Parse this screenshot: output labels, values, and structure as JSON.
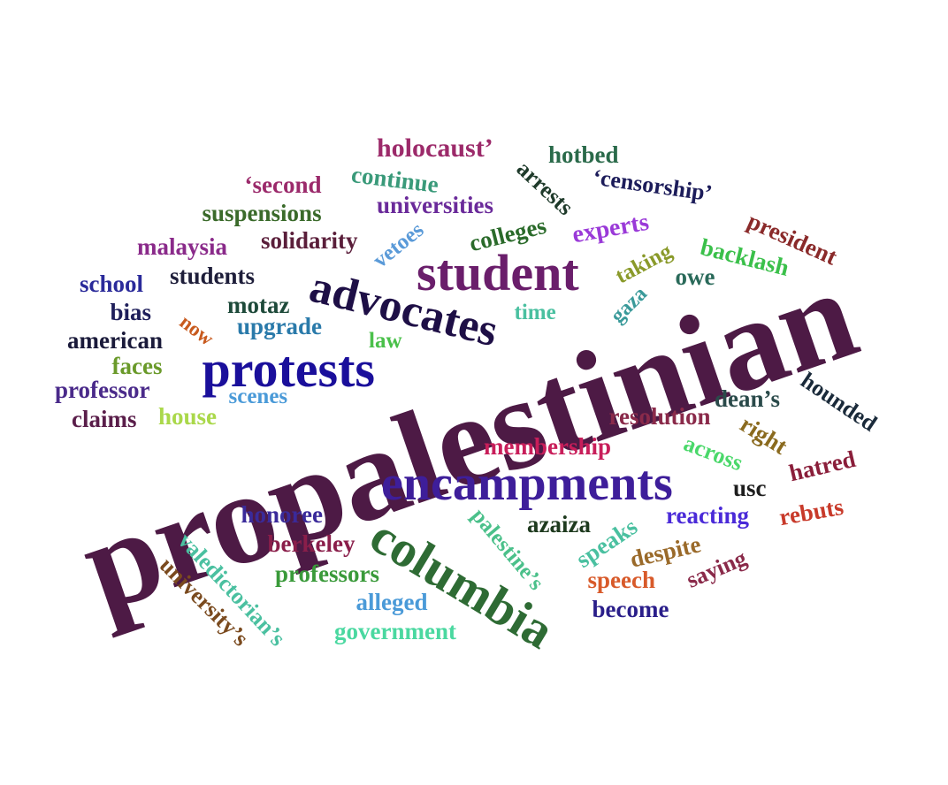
{
  "words": [
    {
      "text": "propalestinian",
      "color": "#4d1a45"
    },
    {
      "text": "columbia",
      "color": "#2e6b34"
    },
    {
      "text": "encampments",
      "color": "#3e1e9a"
    },
    {
      "text": "advocates",
      "color": "#1e0f46"
    },
    {
      "text": "student",
      "color": "#6a1e6b"
    },
    {
      "text": "protests",
      "color": "#1a0f9b"
    },
    {
      "text": "holocaust’",
      "color": "#9c2a6a"
    },
    {
      "text": "hotbed",
      "color": "#2a6a4a"
    },
    {
      "text": "‘second",
      "color": "#9b2a6b"
    },
    {
      "text": "continue",
      "color": "#3a9a7a"
    },
    {
      "text": "arrests",
      "color": "#1e3a2a"
    },
    {
      "text": "‘censorship’",
      "color": "#1c1c5a"
    },
    {
      "text": "suspensions",
      "color": "#3a6a2a"
    },
    {
      "text": "universities",
      "color": "#6a2a9a"
    },
    {
      "text": "president",
      "color": "#8a2a2a"
    },
    {
      "text": "malaysia",
      "color": "#8a2a8a"
    },
    {
      "text": "solidarity",
      "color": "#5a1e3a"
    },
    {
      "text": "vetoes",
      "color": "#5a9ad8"
    },
    {
      "text": "colleges",
      "color": "#2a6a2a"
    },
    {
      "text": "experts",
      "color": "#9a3ad8"
    },
    {
      "text": "backlash",
      "color": "#3ac04a"
    },
    {
      "text": "school",
      "color": "#2a2a9a"
    },
    {
      "text": "students",
      "color": "#1e1e3a"
    },
    {
      "text": "taking",
      "color": "#8a9a2a"
    },
    {
      "text": "owe",
      "color": "#2a6a5a"
    },
    {
      "text": "motaz",
      "color": "#1e4a3a"
    },
    {
      "text": "bias",
      "color": "#1e1e5a"
    },
    {
      "text": "now",
      "color": "#c85a1e"
    },
    {
      "text": "upgrade",
      "color": "#2a7aaa"
    },
    {
      "text": "time",
      "color": "#4ac0a0"
    },
    {
      "text": "gaza",
      "color": "#3a9a9a"
    },
    {
      "text": "american",
      "color": "#1a1a3a"
    },
    {
      "text": "law",
      "color": "#4ac04a"
    },
    {
      "text": "faces",
      "color": "#6a9a2a"
    },
    {
      "text": "professor",
      "color": "#4a2a8a"
    },
    {
      "text": "scenes",
      "color": "#4a9ad8"
    },
    {
      "text": "hounded",
      "color": "#1a2a3a"
    },
    {
      "text": "dean’s",
      "color": "#2a4a4a"
    },
    {
      "text": "claims",
      "color": "#5a1e4a"
    },
    {
      "text": "house",
      "color": "#aad84a"
    },
    {
      "text": "resolution",
      "color": "#8a2a4a"
    },
    {
      "text": "right",
      "color": "#8a6a1e"
    },
    {
      "text": "membership",
      "color": "#c81e5a"
    },
    {
      "text": "across",
      "color": "#4ad86a"
    },
    {
      "text": "hatred",
      "color": "#8a1e3a"
    },
    {
      "text": "usc",
      "color": "#1e1e1e"
    },
    {
      "text": "valedictorian’s",
      "color": "#4ac0a0"
    },
    {
      "text": "honoree",
      "color": "#3a2a9a"
    },
    {
      "text": "palestine’s",
      "color": "#4ac08a"
    },
    {
      "text": "azaiza",
      "color": "#1e3a1e"
    },
    {
      "text": "reacting",
      "color": "#4a2ad8"
    },
    {
      "text": "rebuts",
      "color": "#c83a2a"
    },
    {
      "text": "berkeley",
      "color": "#8a1e4a"
    },
    {
      "text": "university’s",
      "color": "#7a4a1e"
    },
    {
      "text": "speaks",
      "color": "#4ac0a0"
    },
    {
      "text": "despite",
      "color": "#9a6a2a"
    },
    {
      "text": "professors",
      "color": "#3a9a3a"
    },
    {
      "text": "saying",
      "color": "#8a2a4a"
    },
    {
      "text": "speech",
      "color": "#d85a2a"
    },
    {
      "text": "alleged",
      "color": "#4a9ad8"
    },
    {
      "text": "become",
      "color": "#2a1e8a"
    },
    {
      "text": "government",
      "color": "#4ad8a0"
    }
  ]
}
